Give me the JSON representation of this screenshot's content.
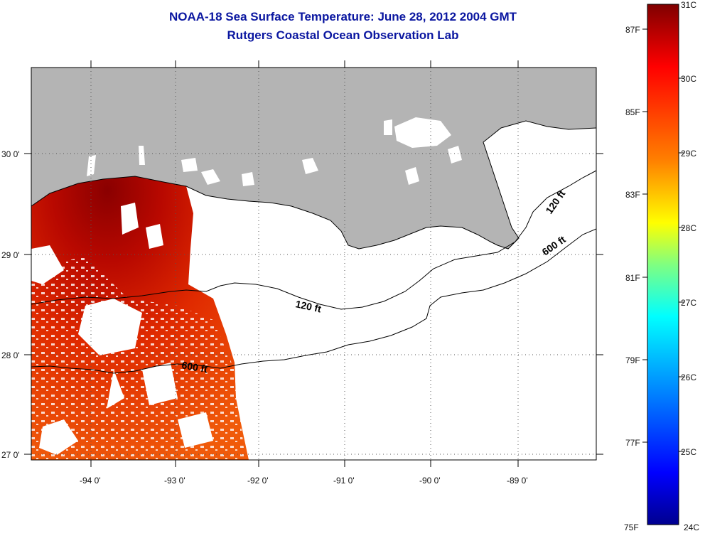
{
  "title_line1": "NOAA-18 Sea Surface Temperature:  June 28, 2012 2004 GMT",
  "title_line2": "Rutgers Coastal Ocean Observation Lab",
  "map": {
    "lon_ticks": [
      "-94 0'",
      "-93 0'",
      "-92 0'",
      "-91 0'",
      "-90 0'",
      "-89 0'"
    ],
    "lat_ticks": [
      "30 0'",
      "29 0'",
      "28 0'",
      "27 0'"
    ],
    "contours": [
      "120 ft",
      "120 ft",
      "600 ft",
      "600 ft"
    ],
    "land_color": "#b4b4b4",
    "no_data_color": "#ffffff"
  },
  "colorbar": {
    "celsius_labels": [
      "31C",
      "30C",
      "29C",
      "28C",
      "27C",
      "26C",
      "25C",
      "24C"
    ],
    "fahrenheit_labels": [
      "87F",
      "85F",
      "83F",
      "81F",
      "79F",
      "77F",
      "75F"
    ],
    "colors": [
      "#7f0000",
      "#ff0000",
      "#ff7f00",
      "#ffff00",
      "#7fff7f",
      "#00ffff",
      "#007fff",
      "#0000ff",
      "#00008f"
    ]
  }
}
